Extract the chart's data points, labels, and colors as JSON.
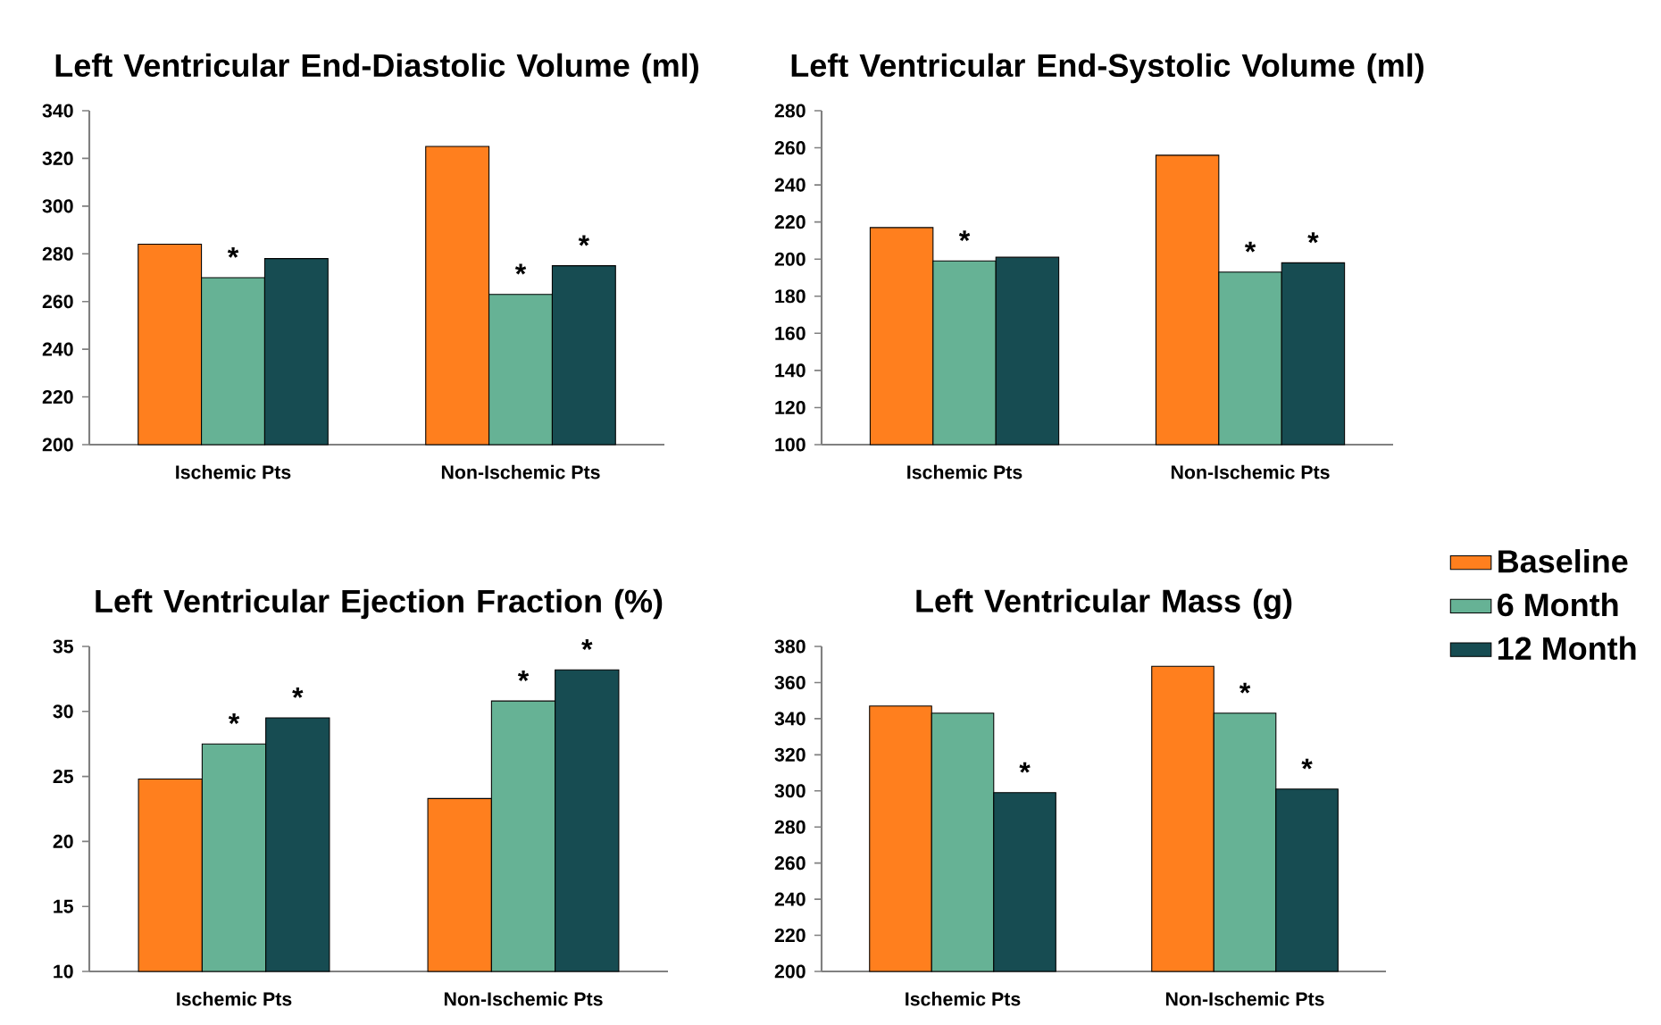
{
  "chart_data": [
    {
      "type": "bar",
      "title": "Left Ventricular End-Diastolic Volume (ml)",
      "categories": [
        "Ischemic Pts",
        "Non-Ischemic Pts"
      ],
      "ylim": [
        200,
        340
      ],
      "yticks": [
        200,
        220,
        240,
        260,
        280,
        300,
        320,
        340
      ],
      "series": [
        {
          "color": "#ff7f1e",
          "values": [
            284,
            325
          ]
        },
        {
          "color": "#66b295",
          "values": [
            270,
            263
          ],
          "value_labels": [
            "*",
            "*"
          ]
        },
        {
          "color": "#174c52",
          "values": [
            278,
            275
          ],
          "value_labels": [
            null,
            "*"
          ]
        }
      ]
    },
    {
      "type": "bar",
      "title": "Left Ventricular End-Systolic Volume (ml)",
      "categories": [
        "Ischemic Pts",
        "Non-Ischemic Pts"
      ],
      "ylim": [
        100,
        280
      ],
      "yticks": [
        100,
        120,
        140,
        160,
        180,
        200,
        220,
        240,
        260,
        280
      ],
      "series": [
        {
          "color": "#ff7f1e",
          "values": [
            217,
            256
          ]
        },
        {
          "color": "#66b295",
          "values": [
            199,
            193
          ],
          "value_labels": [
            "*",
            "*"
          ]
        },
        {
          "color": "#174c52",
          "values": [
            201,
            198
          ],
          "value_labels": [
            null,
            "*"
          ]
        }
      ]
    },
    {
      "type": "bar",
      "title": "Left Ventricular Ejection Fraction (%)",
      "categories": [
        "Ischemic Pts",
        "Non-Ischemic Pts"
      ],
      "ylim": [
        10,
        35
      ],
      "yticks": [
        10,
        15,
        20,
        25,
        30,
        35
      ],
      "series": [
        {
          "color": "#ff7f1e",
          "values": [
            24.8,
            23.3
          ]
        },
        {
          "color": "#66b295",
          "values": [
            27.5,
            30.8
          ],
          "value_labels": [
            "*",
            "*"
          ]
        },
        {
          "color": "#174c52",
          "values": [
            29.5,
            33.2
          ],
          "value_labels": [
            "*",
            "*"
          ]
        }
      ]
    },
    {
      "type": "bar",
      "title": "Left Ventricular Mass (g)",
      "categories": [
        "Ischemic Pts",
        "Non-Ischemic Pts"
      ],
      "ylim": [
        200,
        380
      ],
      "yticks": [
        200,
        220,
        240,
        260,
        280,
        300,
        320,
        340,
        360,
        380
      ],
      "legend": "right",
      "series": [
        {
          "name": "Baseline",
          "color": "#ff7f1e",
          "values": [
            347,
            369
          ]
        },
        {
          "name": "6 Month",
          "color": "#66b295",
          "values": [
            343,
            343
          ],
          "value_labels": [
            null,
            "*"
          ]
        },
        {
          "name": "12 Month",
          "color": "#174c52",
          "values": [
            299,
            301
          ],
          "value_labels": [
            "*",
            "*"
          ]
        }
      ]
    }
  ]
}
